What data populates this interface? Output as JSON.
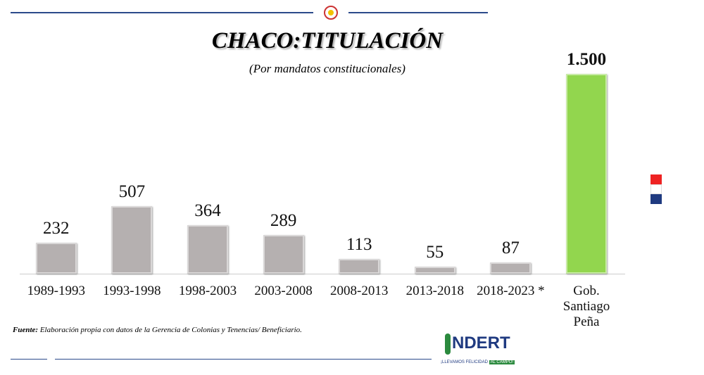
{
  "chart_data": {
    "type": "bar",
    "title": "CHACO:TITULACIÓN",
    "subtitle": "(Por mandatos constitucionales)",
    "categories": [
      "1989-1993",
      "1993-1998",
      "1998-2003",
      "2003-2008",
      "2008-2013",
      "2013-2018",
      "2018-2023 *",
      "Gob. Santiago Peña"
    ],
    "values": [
      232,
      507,
      364,
      289,
      113,
      55,
      87,
      1500
    ],
    "value_labels": [
      "232",
      "507",
      "364",
      "289",
      "113",
      "55",
      "87",
      "1.500"
    ],
    "colors": [
      "#b5b0b0",
      "#b5b0b0",
      "#b5b0b0",
      "#b5b0b0",
      "#b5b0b0",
      "#b5b0b0",
      "#b5b0b0",
      "#92d64e"
    ],
    "ylim": [
      0,
      1500
    ],
    "source_label": "Fuente:",
    "source": "Elaboración propia con datos de la Gerencia de Colonias y Tenencias/ Beneficiario.",
    "logo": "NDERT",
    "logo_slogan": [
      "¡LLEVAMOS FELICIDAD",
      "AL CAMPO!"
    ]
  }
}
